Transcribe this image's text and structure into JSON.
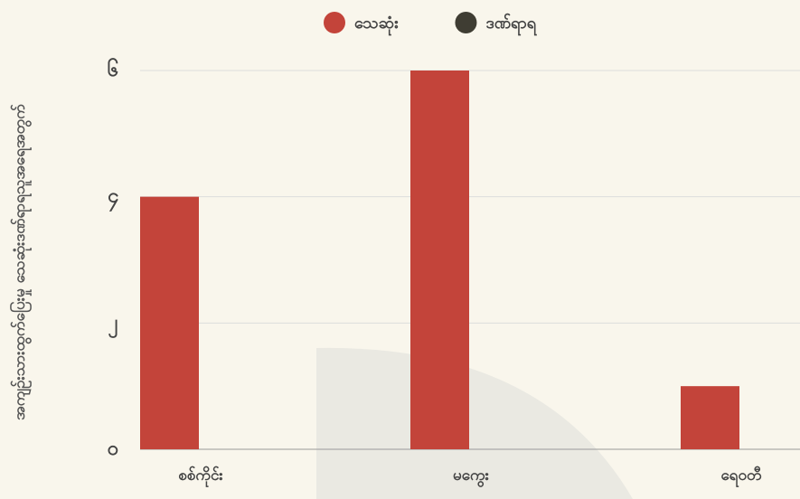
{
  "chart_data": {
    "type": "bar",
    "y_label": "အကျဉ်းသားထွက်ပြေးမှု သေဆုံးဒဏ်ရာရသူအရေအတွက်",
    "categories": [
      "စစ်ကိုင်း",
      "မကွေး",
      "ရေဝတီ"
    ],
    "series": [
      {
        "name": "သေဆုံး",
        "color": "#c3443a",
        "values": [
          4,
          6,
          1
        ]
      },
      {
        "name": "ဒဏ်ရာရ",
        "color": "#3f3d33",
        "values": [
          0,
          0,
          0
        ]
      }
    ],
    "ylim": [
      0,
      6
    ],
    "yticks": [
      {
        "value": 0,
        "label": "၀"
      },
      {
        "value": 2,
        "label": "၂"
      },
      {
        "value": 4,
        "label": "၄"
      },
      {
        "value": 6,
        "label": "၆"
      }
    ],
    "grid": true,
    "legend": "top"
  }
}
